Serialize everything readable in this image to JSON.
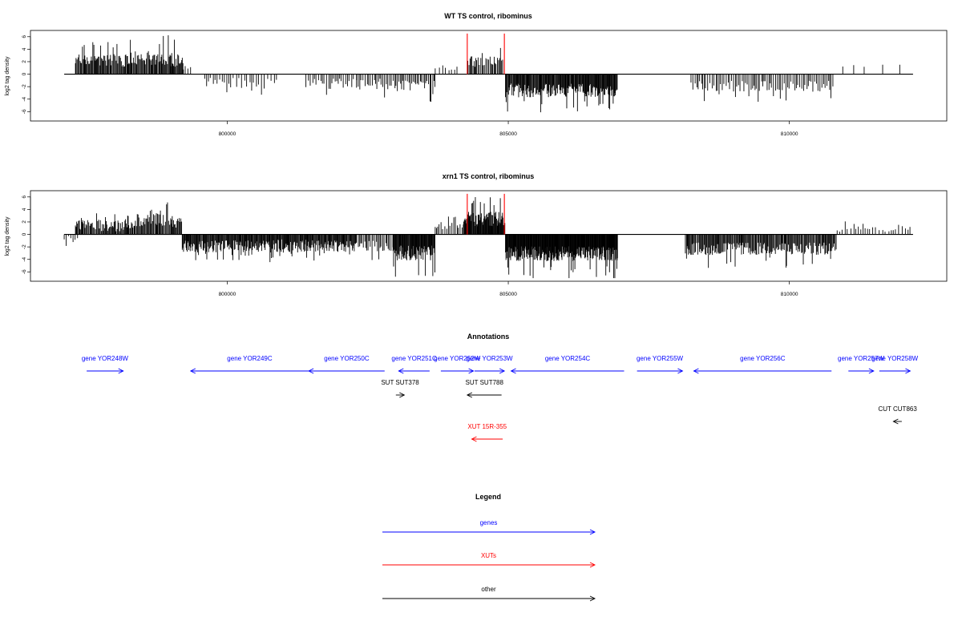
{
  "chart_data": [
    {
      "type": "bar",
      "title": "WT TS control, ribominus",
      "ylabel": "log2 tag density",
      "xlabel": "",
      "xlim": [
        796500,
        812800
      ],
      "ylim": [
        -7.5,
        7
      ],
      "yticks": [
        "6",
        "4",
        "2",
        "0",
        "-2",
        "-4",
        "-6"
      ],
      "xticks": [
        "800000",
        "805000",
        "810000"
      ],
      "baseline_range": [
        797100,
        812200
      ],
      "markers": [
        {
          "x": 804270,
          "y": 6.5
        },
        {
          "x": 804930,
          "y": 6.5
        }
      ],
      "regions": [
        {
          "start": 797300,
          "end": 798250,
          "mean": 2.2,
          "spread": 1.0,
          "step": 15
        },
        {
          "start": 798250,
          "end": 799000,
          "mean": 2.6,
          "spread": 1.1,
          "step": 15
        },
        {
          "start": 799000,
          "end": 799220,
          "mean": 2.4,
          "spread": 1.2,
          "step": 15
        },
        {
          "start": 799220,
          "end": 799400,
          "mean": 1.0,
          "spread": 0.4,
          "step": 40
        },
        {
          "start": 799600,
          "end": 800900,
          "mean": -1.4,
          "spread": 0.9,
          "step": 45
        },
        {
          "start": 801400,
          "end": 802300,
          "mean": -1.5,
          "spread": 0.9,
          "step": 40
        },
        {
          "start": 802300,
          "end": 803000,
          "mean": -1.6,
          "spread": 0.9,
          "step": 30
        },
        {
          "start": 803000,
          "end": 803700,
          "mean": -1.9,
          "spread": 0.9,
          "step": 25
        },
        {
          "start": 803700,
          "end": 804100,
          "mean": 1.0,
          "spread": 0.5,
          "step": 60
        },
        {
          "start": 804280,
          "end": 804900,
          "mean": 2.0,
          "spread": 0.9,
          "step": 20
        },
        {
          "start": 804950,
          "end": 806950,
          "mean": -2.6,
          "spread": 1.1,
          "step": 12
        },
        {
          "start": 808250,
          "end": 810800,
          "mean": -1.9,
          "spread": 0.9,
          "step": 30
        },
        {
          "start": 810950,
          "end": 812100,
          "mean": 1.3,
          "spread": 0.3,
          "step": 250
        }
      ]
    },
    {
      "type": "bar",
      "title": "xrn1 TS control, ribominus",
      "ylabel": "log2 tag density",
      "xlabel": "",
      "xlim": [
        796500,
        812800
      ],
      "ylim": [
        -7.5,
        7
      ],
      "yticks": [
        "6",
        "4",
        "2",
        "0",
        "-2",
        "-4",
        "-6"
      ],
      "xticks": [
        "800000",
        "805000",
        "810000"
      ],
      "baseline_range": [
        797100,
        812200
      ],
      "markers": [
        {
          "x": 804270,
          "y": 6.5
        },
        {
          "x": 804930,
          "y": 6.5
        }
      ],
      "regions": [
        {
          "start": 797100,
          "end": 797350,
          "mean": -1.0,
          "spread": 0.8,
          "step": 40
        },
        {
          "start": 797300,
          "end": 798400,
          "mean": 1.5,
          "spread": 1.0,
          "step": 15
        },
        {
          "start": 798400,
          "end": 799000,
          "mean": 2.3,
          "spread": 1.1,
          "step": 15
        },
        {
          "start": 799000,
          "end": 799200,
          "mean": 2.0,
          "spread": 1.0,
          "step": 15
        },
        {
          "start": 799200,
          "end": 800900,
          "mean": -1.9,
          "spread": 1.0,
          "step": 12
        },
        {
          "start": 800900,
          "end": 802300,
          "mean": -1.8,
          "spread": 1.0,
          "step": 12
        },
        {
          "start": 802300,
          "end": 802950,
          "mean": -1.8,
          "spread": 0.9,
          "step": 25
        },
        {
          "start": 802950,
          "end": 803700,
          "mean": -3.0,
          "spread": 1.2,
          "step": 10
        },
        {
          "start": 803700,
          "end": 804200,
          "mean": 1.5,
          "spread": 0.8,
          "step": 30
        },
        {
          "start": 804200,
          "end": 804950,
          "mean": 2.5,
          "spread": 1.2,
          "step": 10
        },
        {
          "start": 804950,
          "end": 806950,
          "mean": -3.1,
          "spread": 1.2,
          "step": 8
        },
        {
          "start": 808150,
          "end": 810850,
          "mean": -2.3,
          "spread": 1.0,
          "step": 15
        },
        {
          "start": 810850,
          "end": 812150,
          "mean": 1.0,
          "spread": 0.6,
          "step": 50
        }
      ]
    },
    {
      "type": "other",
      "title": "Annotations",
      "features": [
        {
          "label": "gene YOR248W",
          "start": 797500,
          "end": 798150,
          "strand": "+",
          "kind": "gene",
          "row": 0
        },
        {
          "label": "gene YOR249C",
          "start": 799350,
          "end": 801450,
          "strand": "-",
          "kind": "gene",
          "row": 0
        },
        {
          "label": "gene YOR250C",
          "start": 801450,
          "end": 802800,
          "strand": "-",
          "kind": "gene",
          "row": 0
        },
        {
          "label": "gene YOR251C",
          "start": 803050,
          "end": 803600,
          "strand": "-",
          "kind": "gene",
          "row": 0
        },
        {
          "label": "gene YOR252W",
          "start": 803800,
          "end": 804380,
          "strand": "+",
          "kind": "gene",
          "row": 0
        },
        {
          "label": "gene YOR253W",
          "start": 804400,
          "end": 804930,
          "strand": "+",
          "kind": "gene",
          "row": 0
        },
        {
          "label": "gene YOR254C",
          "start": 805050,
          "end": 807060,
          "strand": "-",
          "kind": "gene",
          "row": 0
        },
        {
          "label": "gene YOR255W",
          "start": 807290,
          "end": 808100,
          "strand": "+",
          "kind": "gene",
          "row": 0
        },
        {
          "label": "gene YOR256C",
          "start": 808300,
          "end": 810750,
          "strand": "-",
          "kind": "gene",
          "row": 0
        },
        {
          "label": "gene YOR257W",
          "start": 811050,
          "end": 811500,
          "strand": "+",
          "kind": "gene",
          "row": 0
        },
        {
          "label": "gene YOR258W",
          "start": 811600,
          "end": 812150,
          "strand": "+",
          "kind": "gene",
          "row": 0
        },
        {
          "label": "SUT SUT378",
          "start": 803000,
          "end": 803150,
          "strand": "+",
          "kind": "other",
          "row": 1
        },
        {
          "label": "SUT SUT788",
          "start": 804270,
          "end": 804880,
          "strand": "-",
          "kind": "other",
          "row": 1
        },
        {
          "label": "CUT CUT863",
          "start": 811850,
          "end": 812000,
          "strand": "-",
          "kind": "other",
          "row": 2
        },
        {
          "label": "XUT 15R-355",
          "start": 804350,
          "end": 804900,
          "strand": "-",
          "kind": "xut",
          "row": 3
        }
      ]
    },
    {
      "type": "other",
      "title": "Legend",
      "entries": [
        {
          "label": "genes",
          "color": "#0000ff"
        },
        {
          "label": "XUTs",
          "color": "#ff0000"
        },
        {
          "label": "other",
          "color": "#000000"
        }
      ]
    }
  ],
  "colors": {
    "gene": "#0000ff",
    "xut": "#ff0000",
    "other": "#000000",
    "marker": "#ff0000",
    "bars": "#000000"
  }
}
